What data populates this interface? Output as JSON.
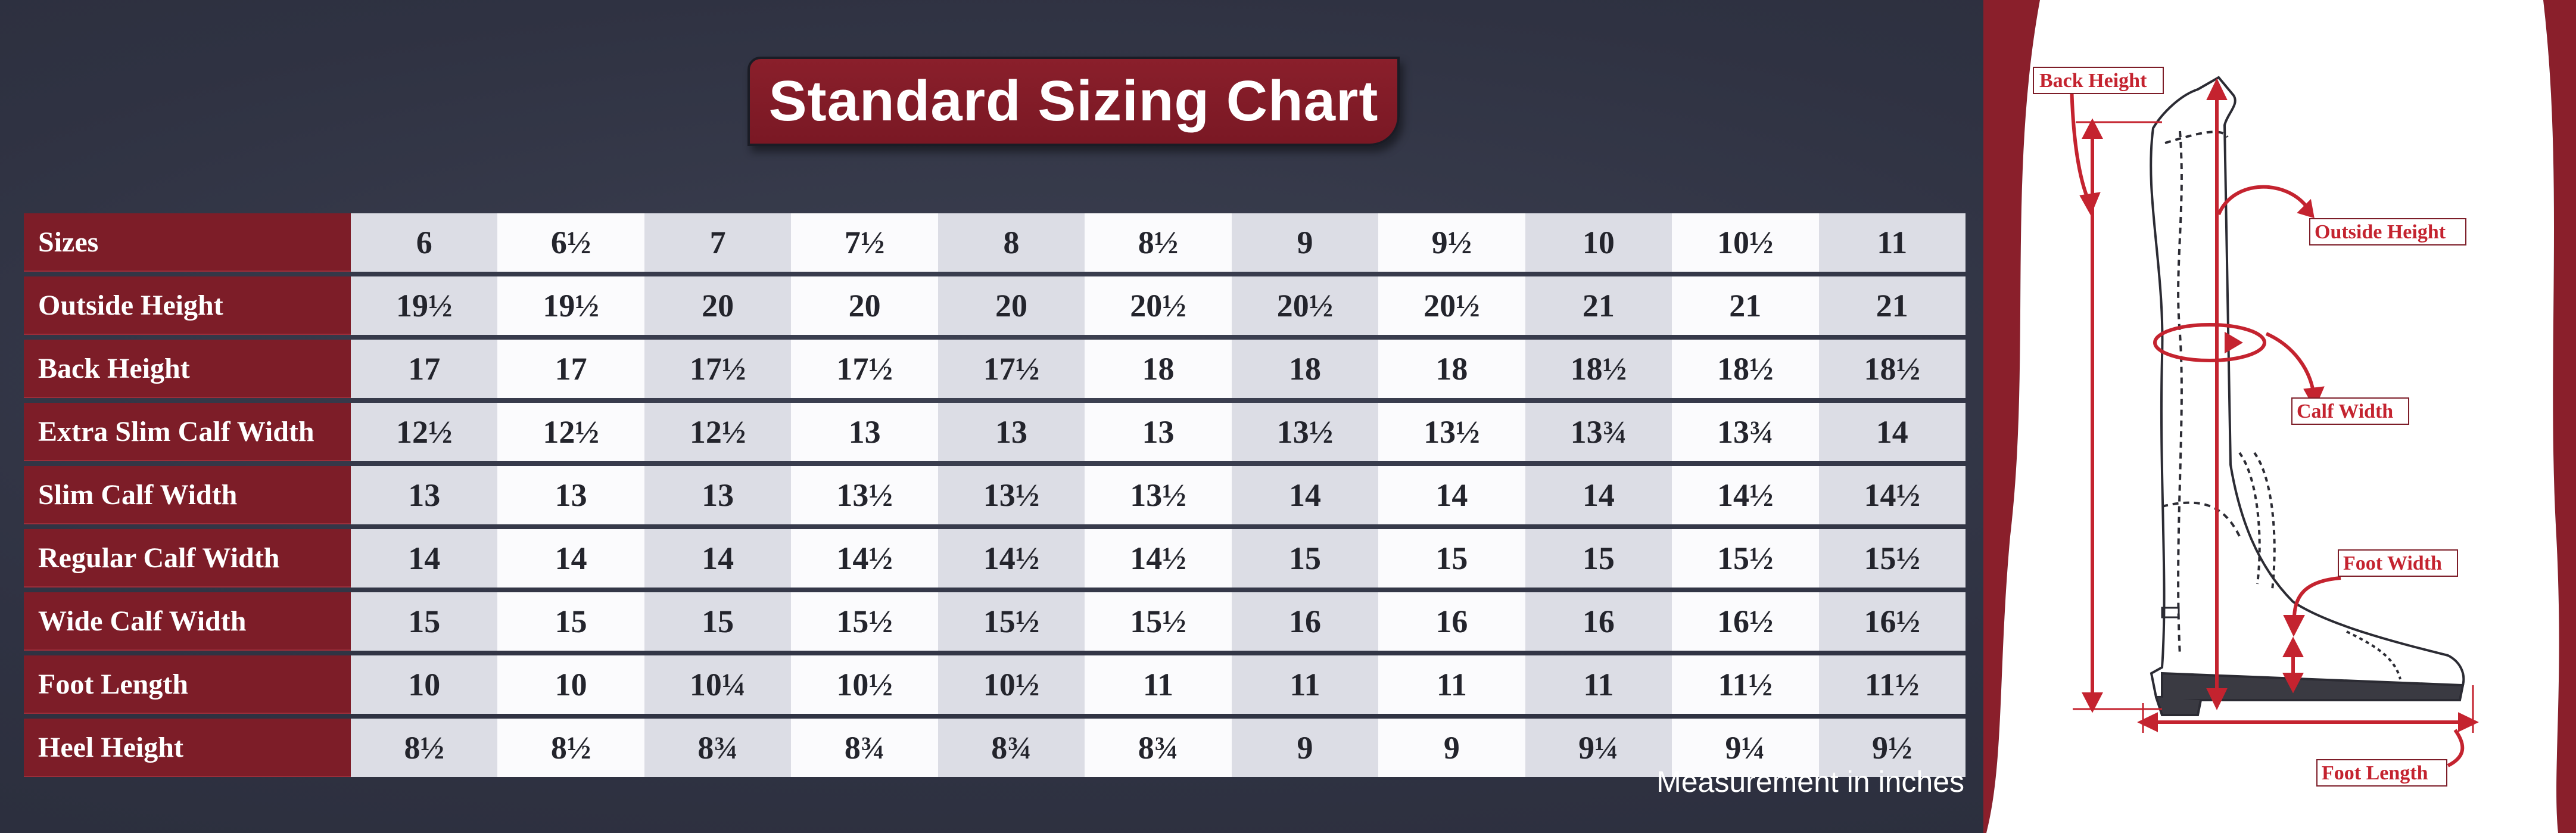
{
  "title": "Standard Sizing Chart",
  "caption": "Measurement in inches",
  "colors": {
    "background": "#2f3242",
    "accent": "#7d1d28",
    "cell_shade": "#dcdde5",
    "cell_white": "#fbfbfd",
    "diagram_red": "#c4232f"
  },
  "table": {
    "header_label": "Sizes",
    "sizes": [
      "6",
      "6½",
      "7",
      "7½",
      "8",
      "8½",
      "9",
      "9½",
      "10",
      "10½",
      "11"
    ],
    "rows": [
      {
        "label": "Outside Height",
        "values": [
          "19½",
          "19½",
          "20",
          "20",
          "20",
          "20½",
          "20½",
          "20½",
          "21",
          "21",
          "21"
        ]
      },
      {
        "label": "Back Height",
        "values": [
          "17",
          "17",
          "17½",
          "17½",
          "17½",
          "18",
          "18",
          "18",
          "18½",
          "18½",
          "18½"
        ]
      },
      {
        "label": "Extra Slim Calf Width",
        "values": [
          "12½",
          "12½",
          "12½",
          "13",
          "13",
          "13",
          "13½",
          "13½",
          "13¾",
          "13¾",
          "14"
        ]
      },
      {
        "label": "Slim Calf Width",
        "values": [
          "13",
          "13",
          "13",
          "13½",
          "13½",
          "13½",
          "14",
          "14",
          "14",
          "14½",
          "14½"
        ]
      },
      {
        "label": "Regular Calf Width",
        "values": [
          "14",
          "14",
          "14",
          "14½",
          "14½",
          "14½",
          "15",
          "15",
          "15",
          "15½",
          "15½"
        ]
      },
      {
        "label": "Wide Calf Width",
        "values": [
          "15",
          "15",
          "15",
          "15½",
          "15½",
          "15½",
          "16",
          "16",
          "16",
          "16½",
          "16½"
        ]
      },
      {
        "label": "Foot Length",
        "values": [
          "10",
          "10",
          "10¼",
          "10½",
          "10½",
          "11",
          "11",
          "11",
          "11",
          "11½",
          "11½"
        ]
      },
      {
        "label": "Heel Height",
        "values": [
          "8½",
          "8½",
          "8¾",
          "8¾",
          "8¾",
          "8¾",
          "9",
          "9",
          "9¼",
          "9¼",
          "9½"
        ]
      }
    ]
  },
  "diagram": {
    "labels": {
      "back_height": "Back Height",
      "outside_height": "Outside Height",
      "calf_width": "Calf Width",
      "foot_width": "Foot Width",
      "foot_length": "Foot Length"
    }
  }
}
